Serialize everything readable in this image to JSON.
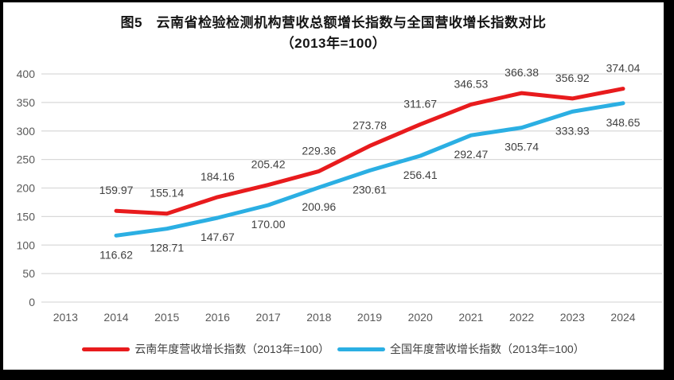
{
  "title": {
    "line1": "图5　云南省检验检测机构营收总额增长指数与全国营收增长指数对比",
    "line2": "（2013年=100）"
  },
  "chart_data": {
    "type": "line",
    "x": [
      "2013",
      "2014",
      "2015",
      "2016",
      "2017",
      "2018",
      "2019",
      "2020",
      "2021",
      "2022",
      "2023",
      "2024"
    ],
    "series": [
      {
        "name": "云南年度营收增长指数（2013年=100）",
        "color": "#e81b1d",
        "values": [
          null,
          "159.97",
          "155.14",
          "184.16",
          "205.42",
          "229.36",
          "273.78",
          "311.67",
          "346.53",
          "366.38",
          "356.92",
          "374.04"
        ]
      },
      {
        "name": "全国年度营收增长指数（2013年=100）",
        "color": "#2bafe3",
        "values": [
          null,
          "116.62",
          "128.71",
          "147.67",
          "170.00",
          "200.96",
          "230.61",
          "256.41",
          "292.47",
          "305.74",
          "333.93",
          "348.65"
        ]
      }
    ],
    "ylim": [
      0,
      400
    ],
    "ytick_step": 50,
    "yticks": [
      "0",
      "50",
      "100",
      "150",
      "200",
      "250",
      "300",
      "350",
      "400"
    ],
    "grid": "horizontal",
    "legend_position": "bottom"
  },
  "colors": {
    "gridline": "#d9d9d9",
    "axis_tick_text": "#595959",
    "data_label_text": "#404040",
    "frame_border": "#000000",
    "background": "#ffffff"
  }
}
